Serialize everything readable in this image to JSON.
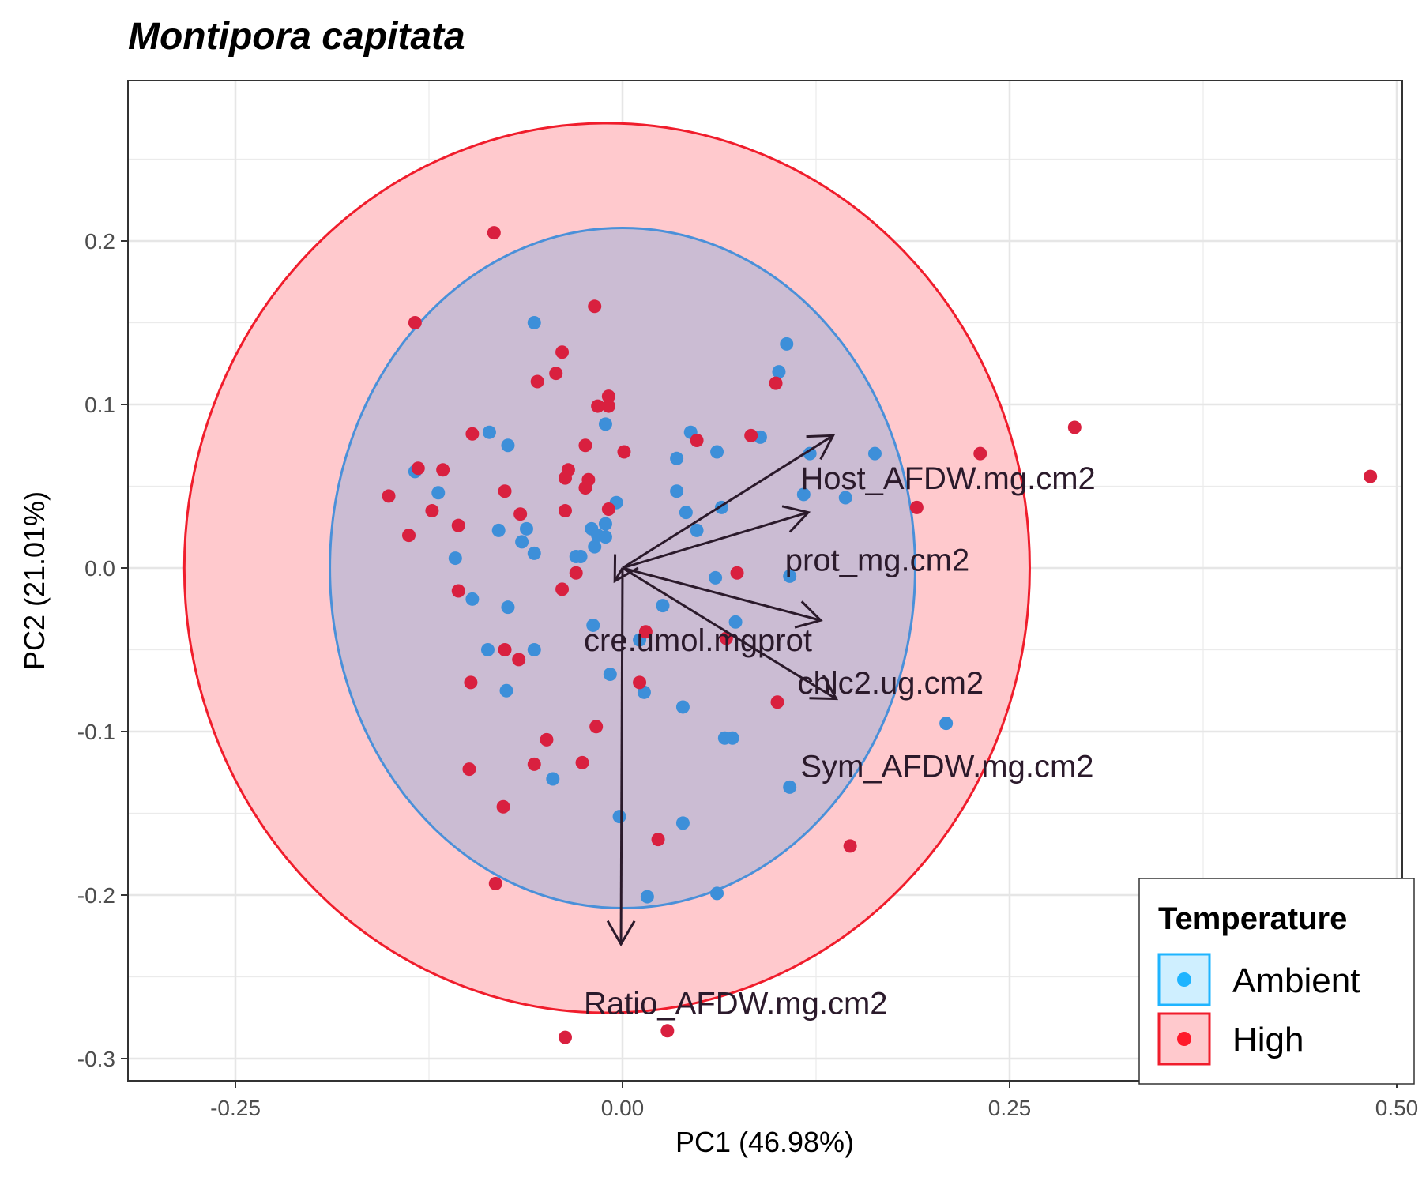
{
  "chart_data": {
    "type": "scatter",
    "title": "Montipora capitata",
    "xlabel": "PC1 (46.98%)",
    "ylabel": "PC2 (21.01%)",
    "xlim": [
      -0.32,
      0.5
    ],
    "ylim": [
      -0.315,
      0.3
    ],
    "x_ticks": [
      -0.25,
      0.0,
      0.25,
      0.5
    ],
    "x_tick_labels": [
      "-0.25",
      "0.00",
      "0.25",
      "0.50"
    ],
    "y_ticks": [
      0.2,
      0.1,
      0.0,
      -0.1,
      -0.2,
      -0.3
    ],
    "y_tick_labels": [
      "0.2",
      "0.1",
      "0.0",
      "-0.1",
      "-0.2",
      "-0.3"
    ],
    "grid": true,
    "legend": {
      "title": "Temperature",
      "position": "bottom-right",
      "entries": [
        {
          "name": "Ambient",
          "color": "#1fb4ff"
        },
        {
          "name": "High",
          "color": "#ff1a2b"
        }
      ]
    },
    "series": [
      {
        "name": "Ambient",
        "color": "#3d8fd9",
        "ellipse": {
          "cx": 0.0,
          "cy": 0.0,
          "rx": 0.189,
          "ry": 0.208,
          "fill": "#a0b0d8",
          "stroke": "#4a90d9"
        },
        "points": [
          [
            -0.057,
            0.15
          ],
          [
            0.106,
            0.137
          ],
          [
            0.101,
            0.12
          ],
          [
            -0.011,
            0.088
          ],
          [
            0.044,
            0.083
          ],
          [
            -0.086,
            0.083
          ],
          [
            0.089,
            0.08
          ],
          [
            -0.074,
            0.075
          ],
          [
            0.061,
            0.071
          ],
          [
            0.163,
            0.07
          ],
          [
            0.121,
            0.07
          ],
          [
            0.035,
            0.067
          ],
          [
            -0.134,
            0.059
          ],
          [
            -0.119,
            0.046
          ],
          [
            0.035,
            0.047
          ],
          [
            0.117,
            0.045
          ],
          [
            0.144,
            0.043
          ],
          [
            -0.004,
            0.04
          ],
          [
            0.064,
            0.037
          ],
          [
            0.041,
            0.034
          ],
          [
            -0.062,
            0.024
          ],
          [
            -0.08,
            0.023
          ],
          [
            -0.02,
            0.024
          ],
          [
            -0.011,
            0.027
          ],
          [
            0.048,
            0.023
          ],
          [
            -0.016,
            0.02
          ],
          [
            -0.011,
            0.019
          ],
          [
            -0.065,
            0.016
          ],
          [
            -0.018,
            0.013
          ],
          [
            -0.03,
            0.007
          ],
          [
            -0.027,
            0.007
          ],
          [
            -0.057,
            0.009
          ],
          [
            -0.108,
            0.006
          ],
          [
            0.108,
            -0.005
          ],
          [
            0.06,
            -0.006
          ],
          [
            -0.097,
            -0.019
          ],
          [
            -0.074,
            -0.024
          ],
          [
            0.026,
            -0.023
          ],
          [
            0.073,
            -0.033
          ],
          [
            -0.019,
            -0.035
          ],
          [
            0.011,
            -0.044
          ],
          [
            -0.087,
            -0.05
          ],
          [
            -0.057,
            -0.05
          ],
          [
            -0.008,
            -0.065
          ],
          [
            -0.075,
            -0.075
          ],
          [
            0.014,
            -0.076
          ],
          [
            0.039,
            -0.085
          ],
          [
            0.209,
            -0.095
          ],
          [
            0.066,
            -0.104
          ],
          [
            0.071,
            -0.104
          ],
          [
            -0.045,
            -0.129
          ],
          [
            0.108,
            -0.134
          ],
          [
            -0.002,
            -0.152
          ],
          [
            0.039,
            -0.156
          ],
          [
            0.016,
            -0.201
          ],
          [
            0.061,
            -0.199
          ]
        ]
      },
      {
        "name": "High",
        "color": "#d9203f",
        "ellipse": {
          "cx": -0.01,
          "cy": 0.0,
          "rx": 0.273,
          "ry": 0.272,
          "fill": "#ffc9cd",
          "stroke": "#f01d2c"
        },
        "points": [
          [
            -0.083,
            0.205
          ],
          [
            -0.134,
            0.15
          ],
          [
            -0.018,
            0.16
          ],
          [
            -0.039,
            0.132
          ],
          [
            -0.043,
            0.119
          ],
          [
            -0.055,
            0.114
          ],
          [
            0.099,
            0.113
          ],
          [
            -0.009,
            0.105
          ],
          [
            -0.016,
            0.099
          ],
          [
            -0.009,
            0.099
          ],
          [
            -0.097,
            0.082
          ],
          [
            0.083,
            0.081
          ],
          [
            0.292,
            0.086
          ],
          [
            0.231,
            0.07
          ],
          [
            0.483,
            0.056
          ],
          [
            0.048,
            0.078
          ],
          [
            0.001,
            0.071
          ],
          [
            -0.024,
            0.075
          ],
          [
            -0.035,
            0.06
          ],
          [
            -0.132,
            0.061
          ],
          [
            -0.116,
            0.06
          ],
          [
            -0.037,
            0.055
          ],
          [
            -0.022,
            0.054
          ],
          [
            -0.024,
            0.049
          ],
          [
            -0.076,
            0.047
          ],
          [
            -0.151,
            0.044
          ],
          [
            0.19,
            0.037
          ],
          [
            -0.037,
            0.035
          ],
          [
            -0.066,
            0.033
          ],
          [
            -0.123,
            0.035
          ],
          [
            -0.106,
            0.026
          ],
          [
            -0.138,
            0.02
          ],
          [
            -0.009,
            0.036
          ],
          [
            -0.03,
            -0.003
          ],
          [
            0.074,
            -0.003
          ],
          [
            -0.039,
            -0.013
          ],
          [
            -0.106,
            -0.014
          ],
          [
            0.015,
            -0.039
          ],
          [
            0.067,
            -0.043
          ],
          [
            -0.076,
            -0.05
          ],
          [
            -0.067,
            -0.056
          ],
          [
            -0.098,
            -0.07
          ],
          [
            0.011,
            -0.07
          ],
          [
            0.1,
            -0.082
          ],
          [
            -0.017,
            -0.097
          ],
          [
            -0.049,
            -0.105
          ],
          [
            -0.057,
            -0.12
          ],
          [
            -0.026,
            -0.119
          ],
          [
            -0.099,
            -0.123
          ],
          [
            -0.077,
            -0.146
          ],
          [
            0.023,
            -0.166
          ],
          [
            0.147,
            -0.17
          ],
          [
            -0.082,
            -0.193
          ],
          [
            -0.037,
            -0.287
          ],
          [
            0.029,
            -0.283
          ]
        ]
      }
    ],
    "loadings": [
      {
        "label": "Host_AFDW.mg.cm2",
        "tip": [
          0.136,
          0.081
        ],
        "label_pos": [
          0.115,
          0.055
        ]
      },
      {
        "label": "prot_mg.cm2",
        "tip": [
          0.12,
          0.034
        ],
        "label_pos": [
          0.105,
          0.005
        ]
      },
      {
        "label": "cre.umol.mgprot",
        "tip": [
          -0.005,
          -0.008
        ],
        "label_pos": [
          -0.025,
          -0.044
        ]
      },
      {
        "label": "chlc2.ug.cm2",
        "tip": [
          0.128,
          -0.032
        ],
        "label_pos": [
          0.113,
          -0.07
        ]
      },
      {
        "label": "Sym_AFDW.mg.cm2",
        "tip": [
          0.138,
          -0.08
        ],
        "label_pos": [
          0.115,
          -0.121
        ]
      },
      {
        "label": "Ratio_AFDW.mg.cm2",
        "tip": [
          -0.001,
          -0.23
        ],
        "label_pos": [
          -0.025,
          -0.266
        ]
      }
    ]
  }
}
